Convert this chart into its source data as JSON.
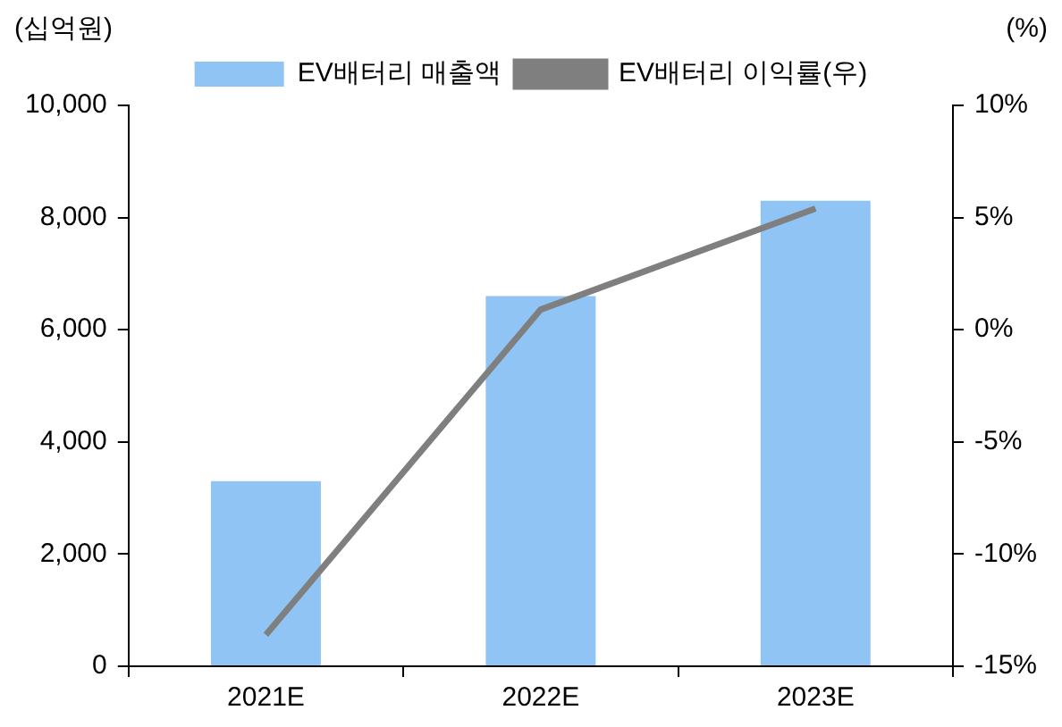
{
  "chart_data": {
    "type": "bar",
    "categories": [
      "2021E",
      "2022E",
      "2023E"
    ],
    "ylabel": "(십억원)",
    "y2label": "(%)",
    "series": [
      {
        "name": "EV배터리 매출액",
        "color": "#90c4f5",
        "values": [
          3300,
          6600,
          8300
        ]
      },
      {
        "name": "EV배터리 이익률(우)",
        "type": "line",
        "axis": "y2",
        "color": "#7f7f7f",
        "values": [
          -13.6,
          0.9,
          5.4
        ]
      }
    ],
    "ylim": [
      0,
      10000
    ],
    "yticks": [
      {
        "value": 0,
        "label": "0"
      },
      {
        "value": 2000,
        "label": "2,000"
      },
      {
        "value": 4000,
        "label": "4,000"
      },
      {
        "value": 6000,
        "label": "6,000"
      },
      {
        "value": 8000,
        "label": "8,000"
      },
      {
        "value": 10000,
        "label": "10,000"
      }
    ],
    "y2lim": [
      -15,
      10
    ],
    "y2ticks": [
      {
        "value": -15,
        "label": "-15%"
      },
      {
        "value": -10,
        "label": "-10%"
      },
      {
        "value": -5,
        "label": "-5%"
      },
      {
        "value": 0,
        "label": "0%"
      },
      {
        "value": 5,
        "label": "5%"
      },
      {
        "value": 10,
        "label": "10%"
      }
    ],
    "grid": false,
    "legend": "top",
    "marker": "none"
  }
}
